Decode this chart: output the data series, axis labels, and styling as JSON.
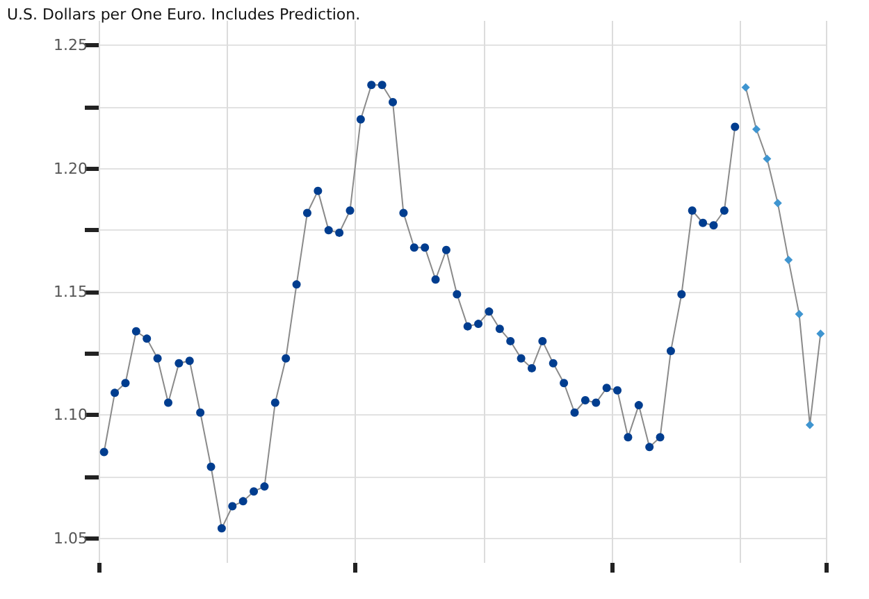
{
  "chart_data": {
    "type": "line",
    "title": "U.S. Dollars per One Euro. Includes Prediction.",
    "categories": [
      null,
      null,
      null,
      null,
      null,
      null,
      null,
      null,
      null,
      null,
      null,
      null,
      null,
      null,
      null,
      null,
      null,
      null,
      null,
      null,
      null,
      null,
      null,
      null,
      null,
      null,
      null,
      null,
      null,
      null,
      null,
      null,
      null,
      null,
      null,
      null,
      null,
      null,
      null,
      null,
      null,
      null,
      null,
      null,
      null,
      null,
      null,
      null,
      null,
      null,
      null,
      null,
      null,
      null,
      null,
      null,
      null,
      null,
      null,
      null,
      null,
      null,
      null,
      null,
      null,
      null,
      null,
      null
    ],
    "series": [
      {
        "color": "#003d8f",
        "marker": "circle",
        "values": [
          1.085,
          1.109,
          1.113,
          1.134,
          1.131,
          1.123,
          1.105,
          1.121,
          1.122,
          1.101,
          1.079,
          1.054,
          1.063,
          1.065,
          1.069,
          1.071,
          1.105,
          1.123,
          1.153,
          1.182,
          1.191,
          1.175,
          1.174,
          1.183,
          1.22,
          1.234,
          1.234,
          1.227,
          1.182,
          1.168,
          1.168,
          1.155,
          1.167,
          1.149,
          1.136,
          1.137,
          1.142,
          1.135,
          1.13,
          1.123,
          1.119,
          1.13,
          1.121,
          1.113,
          1.101,
          1.106,
          1.105,
          1.111,
          1.11,
          1.091,
          1.104,
          1.087,
          1.091,
          1.126,
          1.149,
          1.183,
          1.178,
          1.177,
          1.183,
          1.217,
          null,
          null,
          null,
          null,
          null,
          null,
          null,
          null
        ]
      },
      {
        "color": "#3f95d0",
        "marker": "diamond",
        "values": [
          null,
          null,
          null,
          null,
          null,
          null,
          null,
          null,
          null,
          null,
          null,
          null,
          null,
          null,
          null,
          null,
          null,
          null,
          null,
          null,
          null,
          null,
          null,
          null,
          null,
          null,
          null,
          null,
          null,
          null,
          null,
          null,
          null,
          null,
          null,
          null,
          null,
          null,
          null,
          null,
          null,
          null,
          null,
          null,
          null,
          null,
          null,
          null,
          null,
          null,
          null,
          null,
          null,
          null,
          null,
          null,
          null,
          null,
          null,
          null,
          1.233,
          1.216,
          1.204,
          1.186,
          1.163,
          1.141,
          1.096,
          1.133
        ]
      }
    ],
    "ylim": [
      1.04,
      1.26
    ],
    "yticks": [
      1.05,
      {
        "value": 1.075,
        "label": null
      },
      {
        "value": 1.1,
        "label": "1.10"
      },
      {
        "value": 1.125,
        "label": null
      },
      1.15,
      {
        "value": 1.175,
        "label": null
      },
      {
        "value": 1.2,
        "label": "1.20"
      },
      {
        "value": 1.225,
        "label": null
      },
      1.25
    ],
    "grid": true,
    "line_style": "solid",
    "tick_labels": "y"
  }
}
